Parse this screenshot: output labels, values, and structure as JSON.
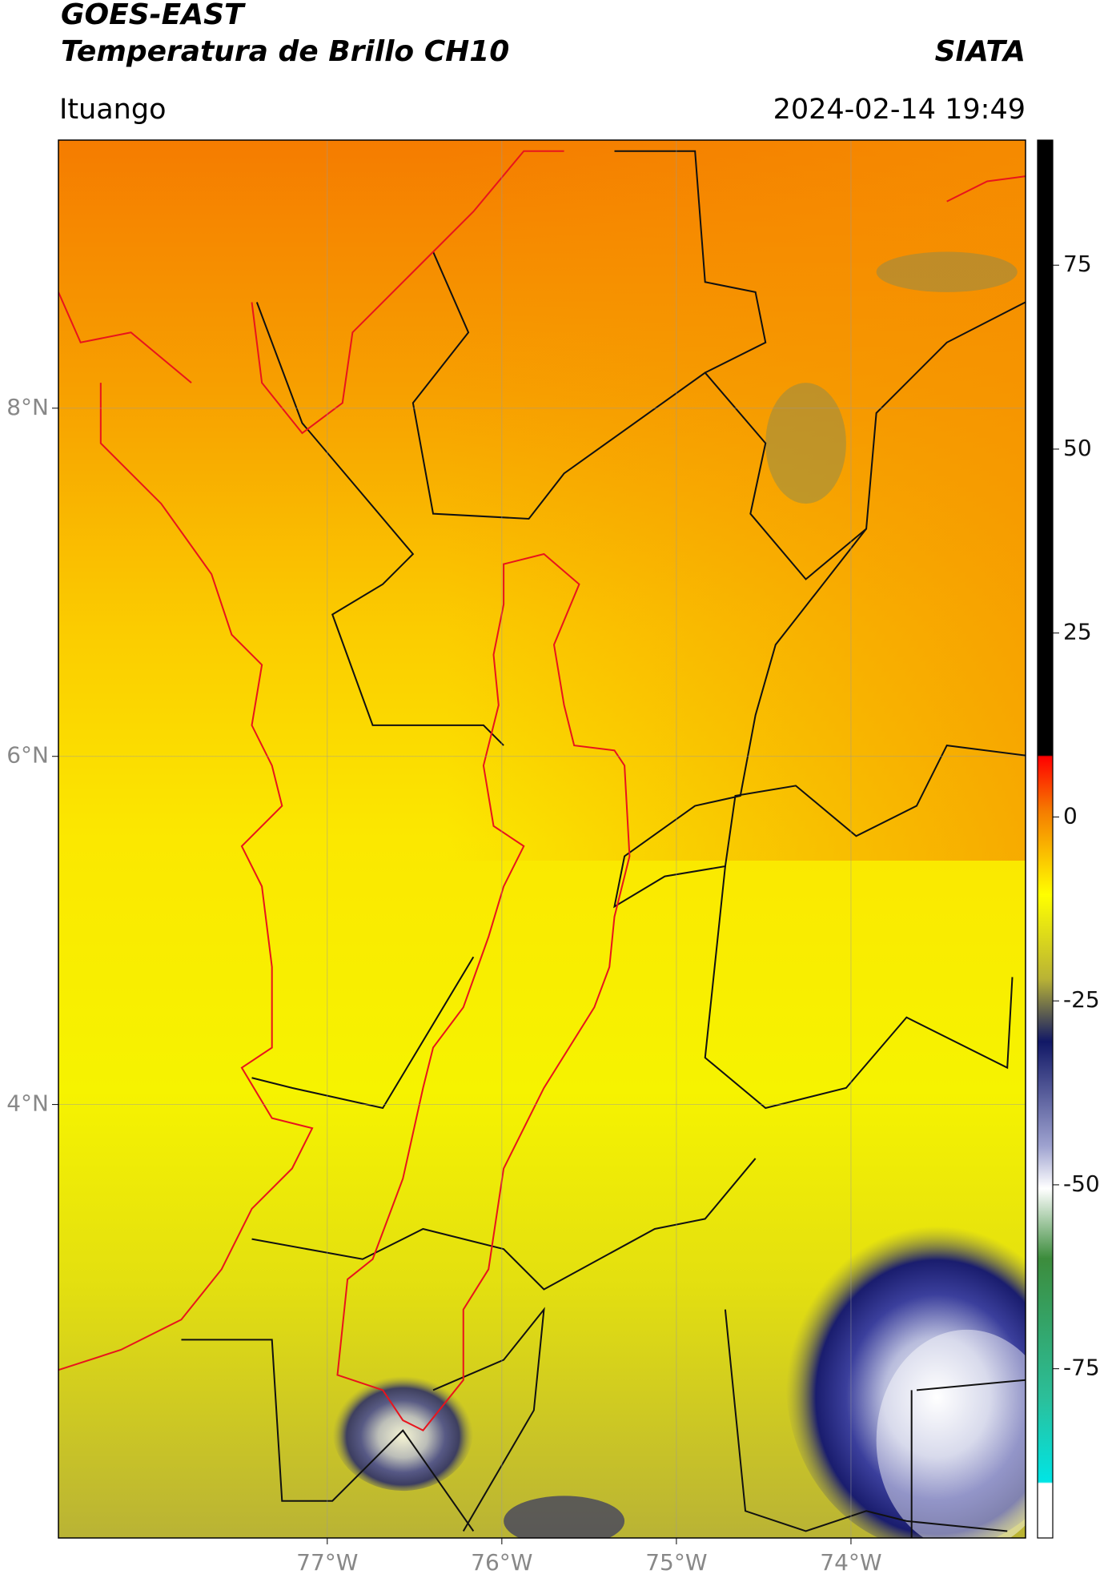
{
  "header": {
    "title": "GOES-EAST",
    "subtitle": "Temperatura de Brillo CH10",
    "source": "SIATA",
    "location": "Ituango",
    "datetime": "2024-02-14 19:49"
  },
  "map": {
    "xlim": [
      -78.54,
      -73.0
    ],
    "ylim": [
      1.51,
      9.54
    ],
    "xticks": [
      {
        "value": -77,
        "label": "77°W"
      },
      {
        "value": -76,
        "label": "76°W"
      },
      {
        "value": -75,
        "label": "75°W"
      },
      {
        "value": -74,
        "label": "74°W"
      }
    ],
    "yticks": [
      {
        "value": 8,
        "label": "8°N"
      },
      {
        "value": 6,
        "label": "6°N"
      },
      {
        "value": 4,
        "label": "4°N"
      }
    ]
  },
  "colorbar": {
    "clim": [
      -98,
      92
    ],
    "ticks": [
      75,
      50,
      25,
      0,
      -25,
      -50,
      -75
    ]
  }
}
